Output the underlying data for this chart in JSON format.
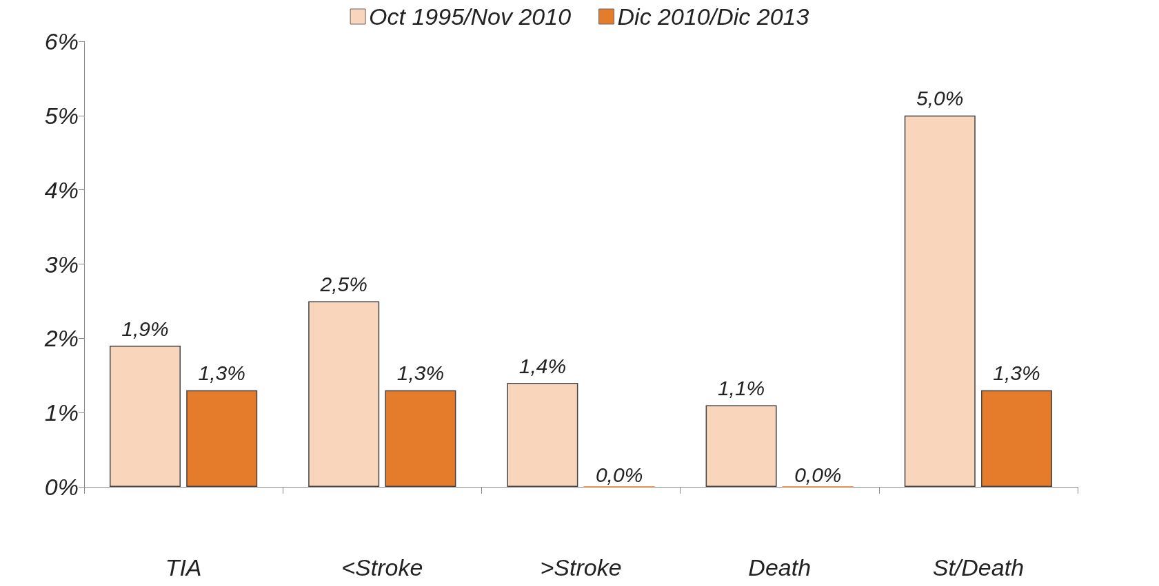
{
  "chart_data": {
    "type": "bar",
    "categories": [
      "TIA",
      "<Stroke",
      ">Stroke",
      "Death",
      "St/Death"
    ],
    "series": [
      {
        "name": "Oct 1995/Nov 2010",
        "color": "#f9d5bb",
        "values": [
          1.9,
          2.5,
          1.4,
          1.1,
          5.0
        ],
        "value_labels": [
          "1,9%",
          "2,5%",
          "1,4%",
          "1,1%",
          "5,0%"
        ]
      },
      {
        "name": "Dic 2010/Dic 2013",
        "color": "#e47c2c",
        "values": [
          1.3,
          1.3,
          0,
          0,
          1.3
        ],
        "value_labels": [
          "1,3%",
          "1,3%",
          "0,0%",
          "0,0%",
          "1,3%"
        ]
      }
    ],
    "ylim": [
      0,
      6
    ],
    "yticks": [
      {
        "value": 0,
        "label": "0%"
      },
      {
        "value": 1,
        "label": "1%"
      },
      {
        "value": 2,
        "label": "2%"
      },
      {
        "value": 3,
        "label": "3%"
      },
      {
        "value": 4,
        "label": "4%"
      },
      {
        "value": 5,
        "label": "5%"
      },
      {
        "value": 6,
        "label": "6%"
      }
    ],
    "grid": false,
    "legend": "top"
  }
}
